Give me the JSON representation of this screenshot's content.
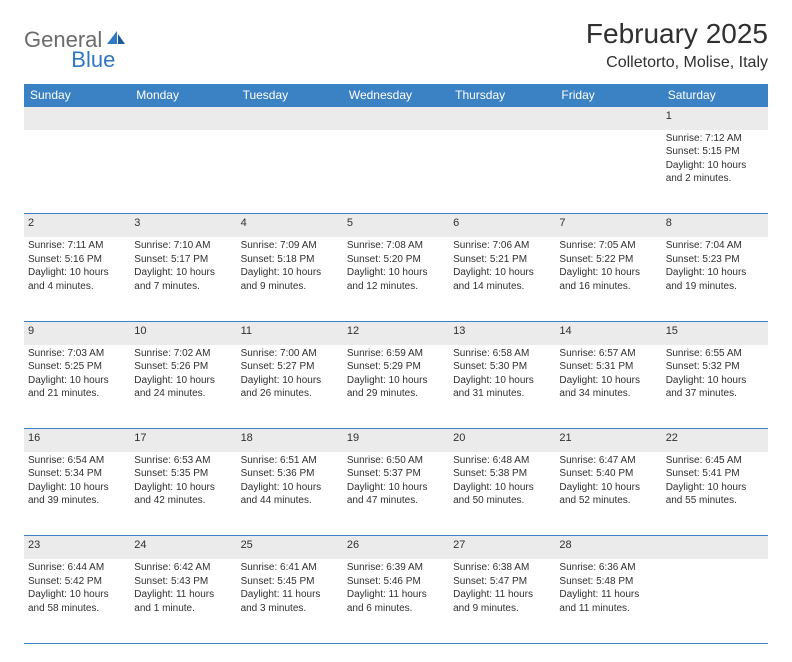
{
  "logo": {
    "general": "General",
    "blue": "Blue"
  },
  "title": "February 2025",
  "location": "Colletorto, Molise, Italy",
  "colors": {
    "header_bg": "#3b82c4",
    "header_text": "#ffffff",
    "daynum_bg": "#ebebeb",
    "border": "#3b82c4",
    "text": "#303030",
    "logo_gray": "#6b6b6b",
    "logo_blue": "#2f78c2"
  },
  "day_headers": [
    "Sunday",
    "Monday",
    "Tuesday",
    "Wednesday",
    "Thursday",
    "Friday",
    "Saturday"
  ],
  "weeks": [
    [
      {
        "day": "",
        "sunrise": "",
        "sunset": "",
        "daylight": ""
      },
      {
        "day": "",
        "sunrise": "",
        "sunset": "",
        "daylight": ""
      },
      {
        "day": "",
        "sunrise": "",
        "sunset": "",
        "daylight": ""
      },
      {
        "day": "",
        "sunrise": "",
        "sunset": "",
        "daylight": ""
      },
      {
        "day": "",
        "sunrise": "",
        "sunset": "",
        "daylight": ""
      },
      {
        "day": "",
        "sunrise": "",
        "sunset": "",
        "daylight": ""
      },
      {
        "day": "1",
        "sunrise": "7:12 AM",
        "sunset": "5:15 PM",
        "daylight": "10 hours and 2 minutes."
      }
    ],
    [
      {
        "day": "2",
        "sunrise": "7:11 AM",
        "sunset": "5:16 PM",
        "daylight": "10 hours and 4 minutes."
      },
      {
        "day": "3",
        "sunrise": "7:10 AM",
        "sunset": "5:17 PM",
        "daylight": "10 hours and 7 minutes."
      },
      {
        "day": "4",
        "sunrise": "7:09 AM",
        "sunset": "5:18 PM",
        "daylight": "10 hours and 9 minutes."
      },
      {
        "day": "5",
        "sunrise": "7:08 AM",
        "sunset": "5:20 PM",
        "daylight": "10 hours and 12 minutes."
      },
      {
        "day": "6",
        "sunrise": "7:06 AM",
        "sunset": "5:21 PM",
        "daylight": "10 hours and 14 minutes."
      },
      {
        "day": "7",
        "sunrise": "7:05 AM",
        "sunset": "5:22 PM",
        "daylight": "10 hours and 16 minutes."
      },
      {
        "day": "8",
        "sunrise": "7:04 AM",
        "sunset": "5:23 PM",
        "daylight": "10 hours and 19 minutes."
      }
    ],
    [
      {
        "day": "9",
        "sunrise": "7:03 AM",
        "sunset": "5:25 PM",
        "daylight": "10 hours and 21 minutes."
      },
      {
        "day": "10",
        "sunrise": "7:02 AM",
        "sunset": "5:26 PM",
        "daylight": "10 hours and 24 minutes."
      },
      {
        "day": "11",
        "sunrise": "7:00 AM",
        "sunset": "5:27 PM",
        "daylight": "10 hours and 26 minutes."
      },
      {
        "day": "12",
        "sunrise": "6:59 AM",
        "sunset": "5:29 PM",
        "daylight": "10 hours and 29 minutes."
      },
      {
        "day": "13",
        "sunrise": "6:58 AM",
        "sunset": "5:30 PM",
        "daylight": "10 hours and 31 minutes."
      },
      {
        "day": "14",
        "sunrise": "6:57 AM",
        "sunset": "5:31 PM",
        "daylight": "10 hours and 34 minutes."
      },
      {
        "day": "15",
        "sunrise": "6:55 AM",
        "sunset": "5:32 PM",
        "daylight": "10 hours and 37 minutes."
      }
    ],
    [
      {
        "day": "16",
        "sunrise": "6:54 AM",
        "sunset": "5:34 PM",
        "daylight": "10 hours and 39 minutes."
      },
      {
        "day": "17",
        "sunrise": "6:53 AM",
        "sunset": "5:35 PM",
        "daylight": "10 hours and 42 minutes."
      },
      {
        "day": "18",
        "sunrise": "6:51 AM",
        "sunset": "5:36 PM",
        "daylight": "10 hours and 44 minutes."
      },
      {
        "day": "19",
        "sunrise": "6:50 AM",
        "sunset": "5:37 PM",
        "daylight": "10 hours and 47 minutes."
      },
      {
        "day": "20",
        "sunrise": "6:48 AM",
        "sunset": "5:38 PM",
        "daylight": "10 hours and 50 minutes."
      },
      {
        "day": "21",
        "sunrise": "6:47 AM",
        "sunset": "5:40 PM",
        "daylight": "10 hours and 52 minutes."
      },
      {
        "day": "22",
        "sunrise": "6:45 AM",
        "sunset": "5:41 PM",
        "daylight": "10 hours and 55 minutes."
      }
    ],
    [
      {
        "day": "23",
        "sunrise": "6:44 AM",
        "sunset": "5:42 PM",
        "daylight": "10 hours and 58 minutes."
      },
      {
        "day": "24",
        "sunrise": "6:42 AM",
        "sunset": "5:43 PM",
        "daylight": "11 hours and 1 minute."
      },
      {
        "day": "25",
        "sunrise": "6:41 AM",
        "sunset": "5:45 PM",
        "daylight": "11 hours and 3 minutes."
      },
      {
        "day": "26",
        "sunrise": "6:39 AM",
        "sunset": "5:46 PM",
        "daylight": "11 hours and 6 minutes."
      },
      {
        "day": "27",
        "sunrise": "6:38 AM",
        "sunset": "5:47 PM",
        "daylight": "11 hours and 9 minutes."
      },
      {
        "day": "28",
        "sunrise": "6:36 AM",
        "sunset": "5:48 PM",
        "daylight": "11 hours and 11 minutes."
      },
      {
        "day": "",
        "sunrise": "",
        "sunset": "",
        "daylight": ""
      }
    ]
  ],
  "labels": {
    "sunrise": "Sunrise:",
    "sunset": "Sunset:",
    "daylight": "Daylight:"
  }
}
